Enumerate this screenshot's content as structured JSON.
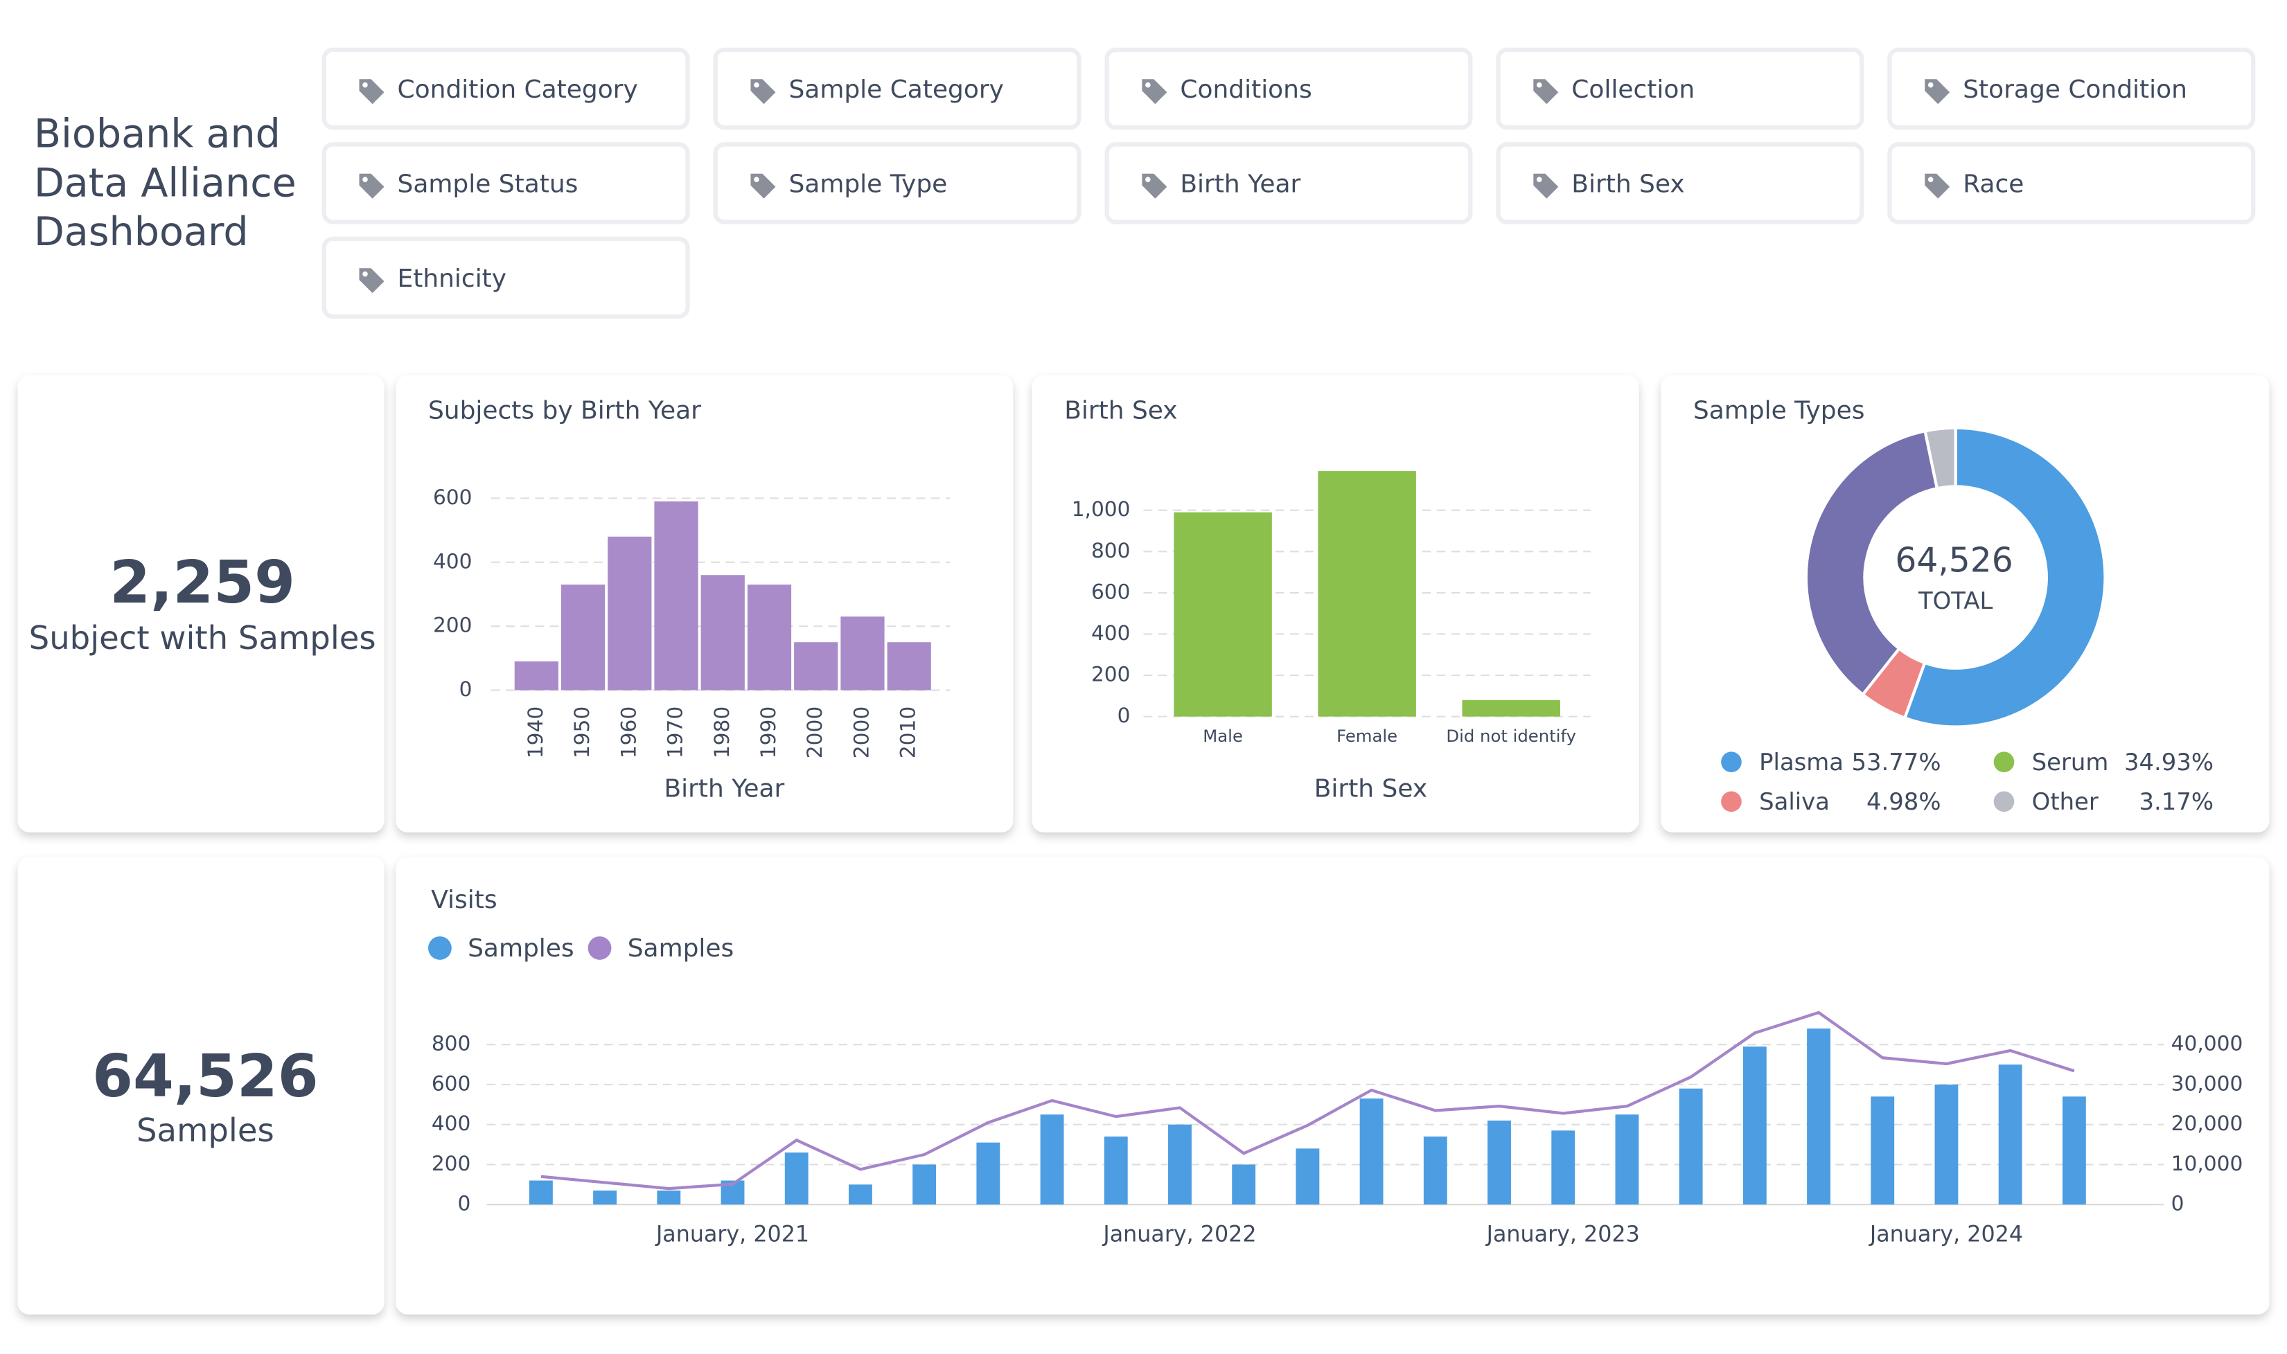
{
  "header": {
    "title_lines": [
      "Biobank and",
      "Data Alliance",
      "Dashboard"
    ]
  },
  "filters": [
    "Condition Category",
    "Sample Category",
    "Conditions",
    "Collection",
    "Storage Condition",
    "Sample Status",
    "Sample Type",
    "Birth Year",
    "Birth Sex",
    "Race",
    "Ethnicity"
  ],
  "kpis": [
    {
      "value": "2,259",
      "label": "Subject with Samples"
    },
    {
      "value": "64,526",
      "label": "Samples"
    }
  ],
  "chart_data": [
    {
      "type": "bar",
      "title": "Subjects by Birth Year",
      "x_label": "Birth Year",
      "categories": [
        "1940",
        "1950",
        "1960",
        "1970",
        "1980",
        "1990",
        "2000",
        "2000",
        "2010"
      ],
      "values": [
        90,
        330,
        480,
        590,
        360,
        330,
        150,
        230,
        150
      ],
      "color": "#a98bc9",
      "ylim": [
        0,
        600
      ],
      "yticks": [
        0,
        200,
        400,
        600
      ],
      "grid": true
    },
    {
      "type": "bar",
      "title": "Birth Sex",
      "x_label": "Birth Sex",
      "categories": [
        "Male",
        "Female",
        "Did not identify"
      ],
      "values": [
        990,
        1190,
        80
      ],
      "color": "#8bc04c",
      "ylim": [
        0,
        1250
      ],
      "yticks": [
        0,
        200,
        400,
        600,
        800,
        {
          "value": 1000,
          "label": "1,000"
        }
      ],
      "grid": true
    },
    {
      "type": "donut",
      "title": "Sample Types",
      "center_value": "64,526",
      "center_label": "TOTAL",
      "categories": [
        "Plasma",
        "Saliva",
        "Serum",
        "Other"
      ],
      "values": [
        53.77,
        4.98,
        34.93,
        3.17
      ],
      "value_labels": [
        "53.77%",
        "4.98%",
        "34.93%",
        "3.17%"
      ],
      "colors": [
        "#4c9de1",
        "#ee8585",
        "#7471ae",
        "#b9bcc4"
      ],
      "legend_colors": [
        "#4c9de1",
        "#ee8585",
        "#8bc04c",
        "#b9bcc4"
      ]
    },
    {
      "type": "bar_line",
      "title": "Visits",
      "categories": [
        null,
        null,
        null,
        "January, 2021",
        null,
        null,
        null,
        null,
        null,
        null,
        "January, 2022",
        null,
        null,
        null,
        null,
        null,
        "January, 2023",
        null,
        null,
        null,
        null,
        null,
        "January, 2024",
        null,
        null
      ],
      "series": [
        {
          "name": "Samples",
          "color": "#4c9de1",
          "type": "bar",
          "values": [
            120,
            70,
            70,
            120,
            260,
            100,
            200,
            310,
            450,
            340,
            400,
            200,
            280,
            530,
            340,
            420,
            370,
            450,
            580,
            790,
            880,
            540,
            600,
            700,
            540
          ]
        },
        {
          "name": "Samples",
          "color": "#a585c9",
          "type": "line",
          "axis": "y2",
          "values": [
            7000,
            5500,
            4000,
            5100,
            16100,
            8800,
            12500,
            20500,
            26000,
            22000,
            24200,
            12800,
            19800,
            28600,
            23500,
            24600,
            22800,
            24600,
            31900,
            42900,
            48000,
            36700,
            35200,
            38500,
            33400
          ]
        }
      ],
      "ylim": [
        0,
        960
      ],
      "yticks": [
        0,
        200,
        400,
        600,
        800
      ],
      "y2lim": [
        0,
        48000
      ],
      "y2ticks": [
        0,
        {
          "value": 10000,
          "label": "10,000"
        },
        {
          "value": 20000,
          "label": "20,000"
        },
        {
          "value": 30000,
          "label": "30,000"
        },
        {
          "value": 40000,
          "label": "40,000"
        }
      ],
      "grid": true
    }
  ]
}
